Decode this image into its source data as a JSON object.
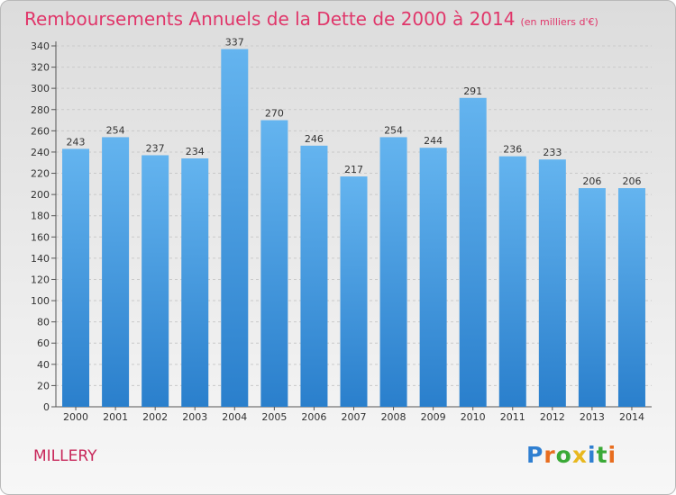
{
  "title": "Remboursements Annuels de la Dette de 2000 à 2014",
  "subtitle": "(en milliers d'€)",
  "commune": "MILLERY",
  "logo": {
    "letters": [
      "P",
      "r",
      "o",
      "x",
      "i",
      "t",
      "i"
    ],
    "colors": [
      "#2f7fd1",
      "#e86d1f",
      "#3aa936",
      "#e8b81f",
      "#2f7fd1",
      "#3aa936",
      "#e86d1f"
    ]
  },
  "colors": {
    "bar": "#3b8fd8",
    "bar_light": "#62b2ee",
    "title": "#e0366a"
  },
  "chart_data": {
    "type": "bar",
    "title": "Remboursements Annuels de la Dette de 2000 à 2014",
    "categories": [
      "2000",
      "2001",
      "2002",
      "2003",
      "2004",
      "2005",
      "2006",
      "2007",
      "2008",
      "2009",
      "2010",
      "2011",
      "2012",
      "2013",
      "2014"
    ],
    "values": [
      243,
      254,
      237,
      234,
      337,
      270,
      246,
      217,
      254,
      244,
      291,
      236,
      233,
      206,
      206
    ],
    "ylim": [
      0,
      340
    ],
    "yticks": [
      0,
      20,
      40,
      60,
      80,
      100,
      120,
      140,
      160,
      180,
      200,
      220,
      240,
      260,
      280,
      300,
      320,
      340
    ],
    "grid": true,
    "xlabel": "",
    "ylabel": ""
  }
}
